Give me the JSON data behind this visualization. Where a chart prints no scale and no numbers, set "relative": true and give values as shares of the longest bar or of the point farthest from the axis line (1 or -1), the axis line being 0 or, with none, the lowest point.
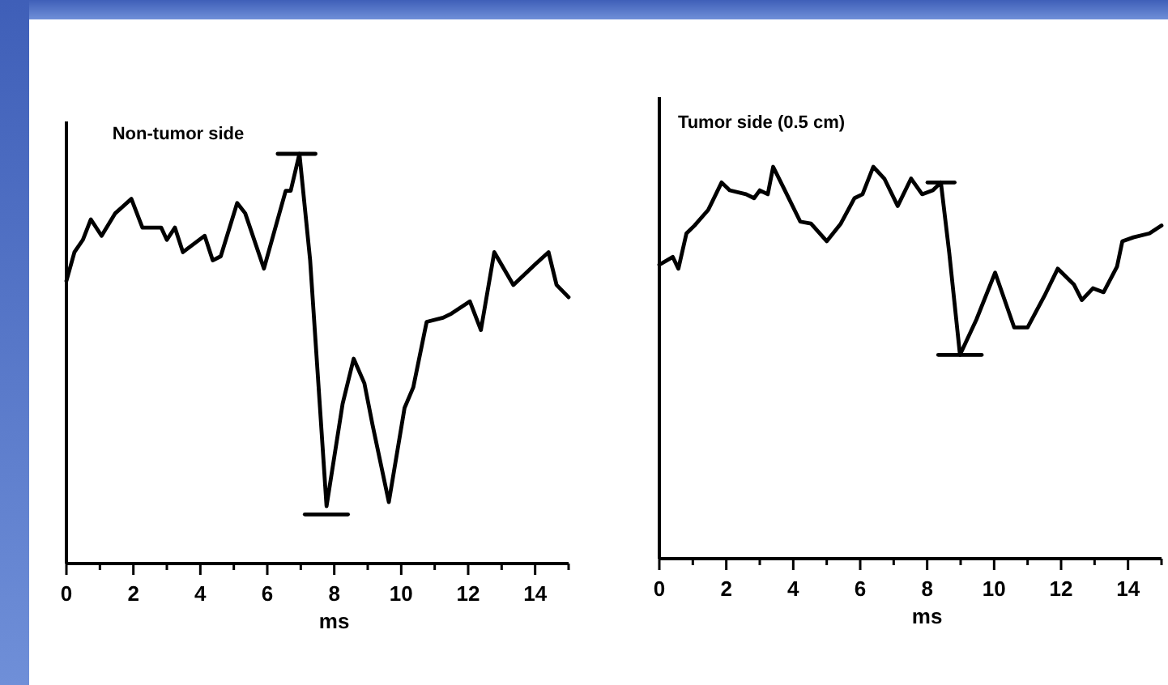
{
  "chart_data": [
    {
      "type": "line",
      "title": "Non-tumor side",
      "xlabel": "ms",
      "relative": true,
      "xlim": [
        0,
        15
      ],
      "xticks": [
        0,
        {
          "value": 1,
          "label": null
        },
        2,
        {
          "value": 3,
          "label": null
        },
        4,
        {
          "value": 5,
          "label": null
        },
        6,
        {
          "value": 7,
          "label": null
        },
        8,
        {
          "value": 9,
          "label": null
        },
        10,
        {
          "value": 11,
          "label": null
        },
        12,
        {
          "value": 13,
          "label": null
        },
        14,
        {
          "value": 15,
          "label": null
        }
      ],
      "tick_labels": "x",
      "marker": "none",
      "line_style": "solid",
      "series": [
        {
          "color": "#000000",
          "x": [
            0,
            0.24,
            0.49,
            0.73,
            1.05,
            1.46,
            1.94,
            2.27,
            2.83,
            3.0,
            3.24,
            3.48,
            4.13,
            4.37,
            4.61,
            5.1,
            5.34,
            5.9,
            6.55,
            6.7,
            6.96,
            7.28,
            7.77,
            8.25,
            8.58,
            8.9,
            9.14,
            9.63,
            10.1,
            10.36,
            10.76,
            11.25,
            11.5,
            12.05,
            12.38,
            12.78,
            13.35,
            14.0,
            14.4,
            14.64,
            15.0
          ],
          "values": [
            0.69,
            0.76,
            0.79,
            0.84,
            0.8,
            0.855,
            0.89,
            0.82,
            0.82,
            0.79,
            0.82,
            0.76,
            0.8,
            0.74,
            0.75,
            0.88,
            0.855,
            0.72,
            0.91,
            0.91,
            1.0,
            0.74,
            0.14,
            0.39,
            0.5,
            0.44,
            0.34,
            0.15,
            0.38,
            0.43,
            0.59,
            0.6,
            0.61,
            0.64,
            0.57,
            0.76,
            0.68,
            0.73,
            0.76,
            0.68,
            0.65
          ]
        },
        {
          "color": "#000000",
          "x": [
            6.31,
            7.44
          ],
          "values": [
            1.0,
            1.0
          ]
        },
        {
          "color": "#000000",
          "x": [
            7.12,
            8.41
          ],
          "values": [
            0.12,
            0.12
          ]
        }
      ]
    },
    {
      "type": "line",
      "title": "Tumor side (0.5 cm)",
      "xlabel": "ms",
      "relative": true,
      "xlim": [
        0,
        15
      ],
      "xticks": [
        0,
        {
          "value": 1,
          "label": null
        },
        2,
        {
          "value": 3,
          "label": null
        },
        4,
        {
          "value": 5,
          "label": null
        },
        6,
        {
          "value": 7,
          "label": null
        },
        8,
        {
          "value": 9,
          "label": null
        },
        10,
        {
          "value": 11,
          "label": null
        },
        12,
        {
          "value": 13,
          "label": null
        },
        14,
        {
          "value": 15,
          "label": null
        }
      ],
      "tick_labels": "x",
      "marker": "none",
      "line_style": "solid",
      "series": [
        {
          "color": "#000000",
          "x": [
            0,
            0.4,
            0.57,
            0.81,
            1.05,
            1.46,
            1.86,
            2.1,
            2.59,
            2.83,
            3.0,
            3.24,
            3.4,
            3.72,
            4.21,
            4.53,
            5.0,
            5.42,
            5.83,
            6.07,
            6.39,
            6.72,
            7.12,
            7.52,
            7.85,
            8.17,
            8.41,
            8.66,
            8.98,
            9.47,
            10.03,
            10.6,
            11.0,
            11.5,
            11.9,
            12.38,
            12.62,
            12.95,
            13.27,
            13.67,
            13.83,
            14.16,
            14.64,
            15.0
          ],
          "values": [
            0.75,
            0.77,
            0.74,
            0.83,
            0.85,
            0.89,
            0.96,
            0.94,
            0.93,
            0.92,
            0.94,
            0.93,
            1.0,
            0.945,
            0.86,
            0.855,
            0.81,
            0.855,
            0.92,
            0.93,
            1.0,
            0.97,
            0.9,
            0.97,
            0.93,
            0.94,
            0.96,
            0.78,
            0.52,
            0.61,
            0.73,
            0.59,
            0.59,
            0.67,
            0.74,
            0.7,
            0.66,
            0.69,
            0.68,
            0.745,
            0.81,
            0.82,
            0.83,
            0.85
          ]
        },
        {
          "color": "#000000",
          "x": [
            8.01,
            8.82
          ],
          "values": [
            0.96,
            0.96
          ]
        },
        {
          "color": "#000000",
          "x": [
            8.33,
            9.63
          ],
          "values": [
            0.52,
            0.52
          ]
        }
      ]
    }
  ]
}
